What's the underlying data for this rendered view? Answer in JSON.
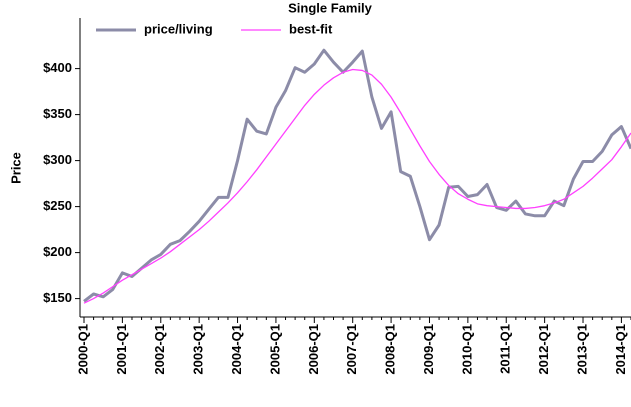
{
  "chart_data": {
    "type": "line",
    "title": "Single Family",
    "y_label": "Price",
    "categories": [
      "2000-Q1",
      null,
      null,
      null,
      "2001-Q1",
      null,
      null,
      null,
      "2002-Q1",
      null,
      null,
      null,
      "2003-Q1",
      null,
      null,
      null,
      "2004-Q1",
      null,
      null,
      null,
      "2005-Q1",
      null,
      null,
      null,
      "2006-Q1",
      null,
      null,
      null,
      "2007-Q1",
      null,
      null,
      null,
      "2008-Q1",
      null,
      null,
      null,
      "2009-Q1",
      null,
      null,
      null,
      "2010-Q1",
      null,
      null,
      null,
      "2011-Q1",
      null,
      null,
      null,
      "2012-Q1",
      null,
      null,
      null,
      "2013-Q1",
      null,
      null,
      null,
      "2014-Q1",
      null
    ],
    "series": [
      {
        "name": "price/living",
        "color": "#8c8ca8",
        "values": [
          147,
          155,
          152,
          160,
          178,
          174,
          183,
          192,
          198,
          209,
          213,
          223,
          234,
          247,
          260,
          260,
          300,
          345,
          332,
          329,
          358,
          376,
          401,
          396,
          405,
          420,
          407,
          396,
          407,
          419,
          369,
          335,
          353,
          288,
          283,
          250,
          214,
          230,
          271,
          272,
          261,
          263,
          274,
          249,
          246,
          256,
          242,
          240,
          240,
          256,
          251,
          280,
          299,
          299,
          310,
          328,
          337,
          313
        ]
      },
      {
        "name": "best-fit",
        "color": "#ff40ff",
        "values": [
          145,
          150,
          156,
          163,
          170,
          176,
          182,
          188,
          194,
          201,
          209,
          217,
          225,
          234,
          244,
          254,
          265,
          277,
          290,
          304,
          318,
          332,
          346,
          360,
          372,
          382,
          390,
          396,
          399,
          398,
          393,
          383,
          369,
          352,
          334,
          316,
          299,
          285,
          273,
          264,
          258,
          253,
          251,
          250,
          249,
          248,
          248,
          249,
          251,
          254,
          258,
          265,
          272,
          281,
          291,
          301,
          315,
          330
        ]
      }
    ],
    "ylim": [
      130,
      455
    ],
    "yticks": [
      {
        "value": 150,
        "label": "$150"
      },
      {
        "value": 200,
        "label": "$200"
      },
      {
        "value": 250,
        "label": "$250"
      },
      {
        "value": 300,
        "label": "$300"
      },
      {
        "value": 350,
        "label": "$350"
      },
      {
        "value": 400,
        "label": "$400"
      }
    ],
    "legend": "top-left"
  }
}
